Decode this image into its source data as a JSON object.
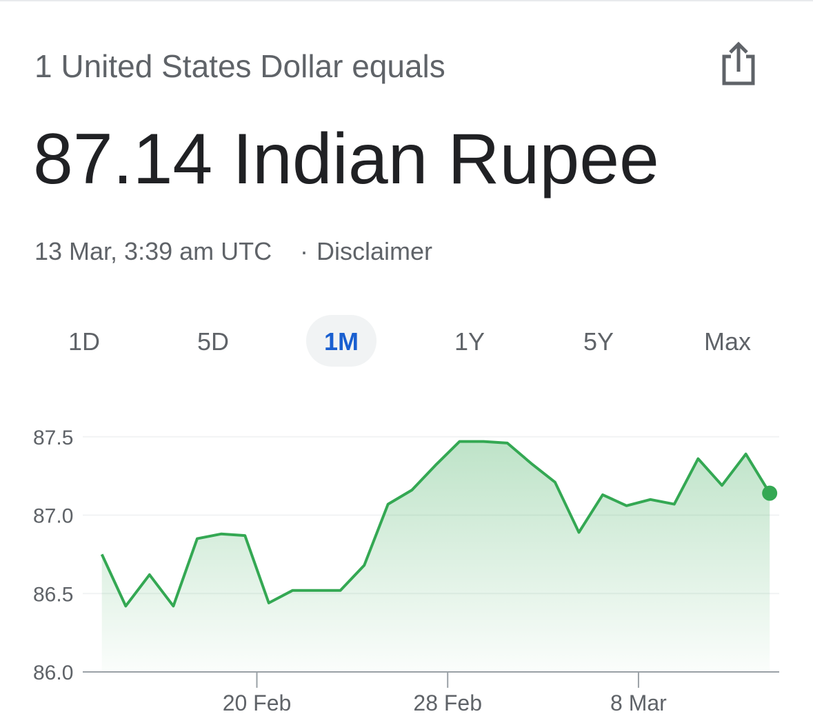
{
  "header": {
    "subtitle": "1 United States Dollar equals",
    "amount": "87.14 Indian Rupee",
    "timestamp": "13 Mar, 3:39 am UTC",
    "separator": "·",
    "disclaimer": "Disclaimer"
  },
  "tabs": {
    "items": [
      "1D",
      "5D",
      "1M",
      "1Y",
      "5Y",
      "Max"
    ],
    "selected": 2
  },
  "chart_data": {
    "type": "line",
    "x": [
      0,
      1,
      2,
      3,
      4,
      5,
      6,
      7,
      8,
      9,
      10,
      11,
      12,
      13,
      14,
      15,
      16,
      17,
      18,
      19,
      20,
      21,
      22,
      23,
      24,
      25,
      26,
      27,
      28
    ],
    "values": [
      86.75,
      86.42,
      86.62,
      86.42,
      86.85,
      86.88,
      86.87,
      86.44,
      86.52,
      86.52,
      86.52,
      86.68,
      87.07,
      87.16,
      87.32,
      87.47,
      87.47,
      87.46,
      87.33,
      87.21,
      86.89,
      87.13,
      87.06,
      87.1,
      87.07,
      87.36,
      87.19,
      87.39,
      87.14
    ],
    "color": "#34a853",
    "xlim": [
      -0.8,
      28.4
    ],
    "xticks": [
      {
        "value": 6.5,
        "label": "20 Feb"
      },
      {
        "value": 14.5,
        "label": "28 Feb"
      },
      {
        "value": 22.5,
        "label": "8 Mar"
      }
    ],
    "ylim": [
      86,
      87.6
    ],
    "yticks": [
      {
        "value": 86,
        "label": "86.0"
      },
      86.5,
      {
        "value": 87,
        "label": "87.0"
      },
      87.5
    ],
    "grid": true
  }
}
